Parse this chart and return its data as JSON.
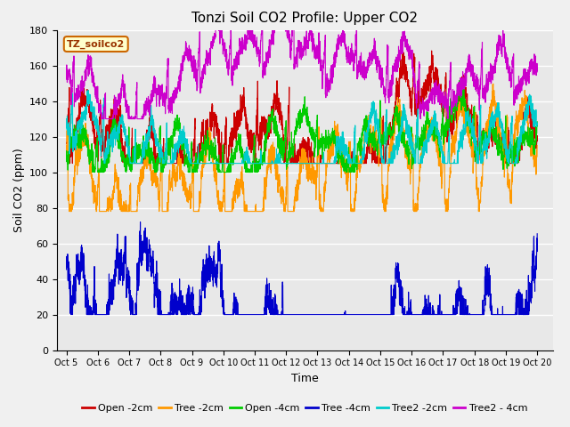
{
  "title": "Tonzi Soil CO2 Profile: Upper CO2",
  "xlabel": "Time",
  "ylabel": "Soil CO2 (ppm)",
  "ylim": [
    0,
    180
  ],
  "yticks": [
    0,
    20,
    40,
    60,
    80,
    100,
    120,
    140,
    160,
    180
  ],
  "x_tick_labels": [
    "Oct 5",
    "Oct 6",
    "Oct 7",
    "Oct 8",
    "Oct 9",
    "Oct 10",
    "Oct 11",
    "Oct 12",
    "Oct 13",
    "Oct 14",
    "Oct 15",
    "Oct 16",
    "Oct 17",
    "Oct 18",
    "Oct 19",
    "Oct 20"
  ],
  "legend_labels": [
    "Open -2cm",
    "Tree -2cm",
    "Open -4cm",
    "Tree -4cm",
    "Tree2 -2cm",
    "Tree2 - 4cm"
  ],
  "line_colors": [
    "#cc0000",
    "#ff9900",
    "#00cc00",
    "#0000cc",
    "#00cccc",
    "#cc00cc"
  ],
  "label_box_facecolor": "#ffffcc",
  "label_box_edgecolor": "#cc6600",
  "label_text": "TZ_soilco2",
  "fig_facecolor": "#f0f0f0",
  "plot_facecolor": "#e8e8e8",
  "grid_color": "#ffffff",
  "title_fontsize": 11,
  "axis_label_fontsize": 9,
  "tick_fontsize": 8,
  "legend_fontsize": 8,
  "n_points": 3600,
  "seed": 7
}
